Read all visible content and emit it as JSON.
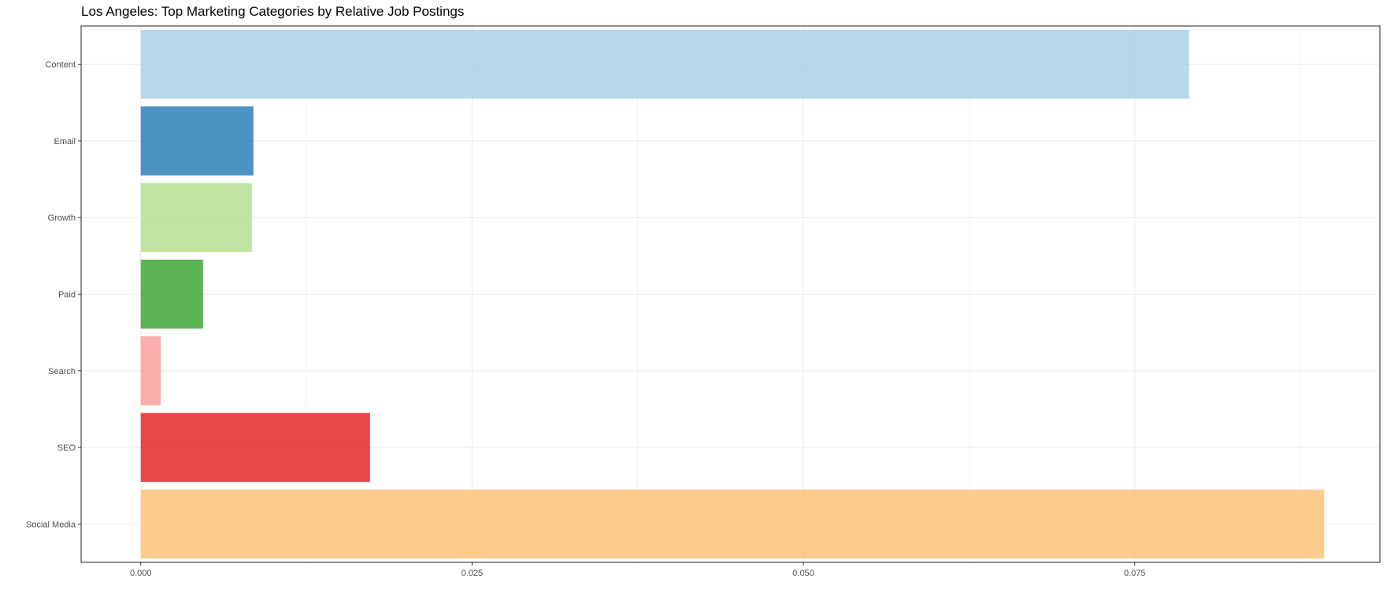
{
  "chart_data": {
    "type": "bar",
    "orientation": "horizontal",
    "title": "Los Angeles: Top Marketing Categories by Relative Job Postings",
    "xlabel": "",
    "ylabel": "",
    "categories": [
      "Content",
      "Email",
      "Growth",
      "Paid",
      "Search",
      "SEO",
      "Social Media"
    ],
    "values": [
      0.0791,
      0.0085,
      0.0084,
      0.0047,
      0.0015,
      0.0173,
      0.0893
    ],
    "colors": [
      "#A6CEE3",
      "#1F78B4",
      "#B2DF8A",
      "#33A02C",
      "#FB9A99",
      "#E31A1C",
      "#FDBF6F"
    ],
    "bar_opacity": 0.8,
    "xlim": [
      -0.0045,
      0.0935
    ],
    "x_ticks": [
      0.0,
      0.025,
      0.05,
      0.075
    ],
    "x_tick_labels": [
      "0.000",
      "0.025",
      "0.050",
      "0.075"
    ],
    "x_minor_ticks": [
      0.0125,
      0.0375,
      0.0625,
      0.0875
    ],
    "grid": true,
    "legend": "none"
  }
}
